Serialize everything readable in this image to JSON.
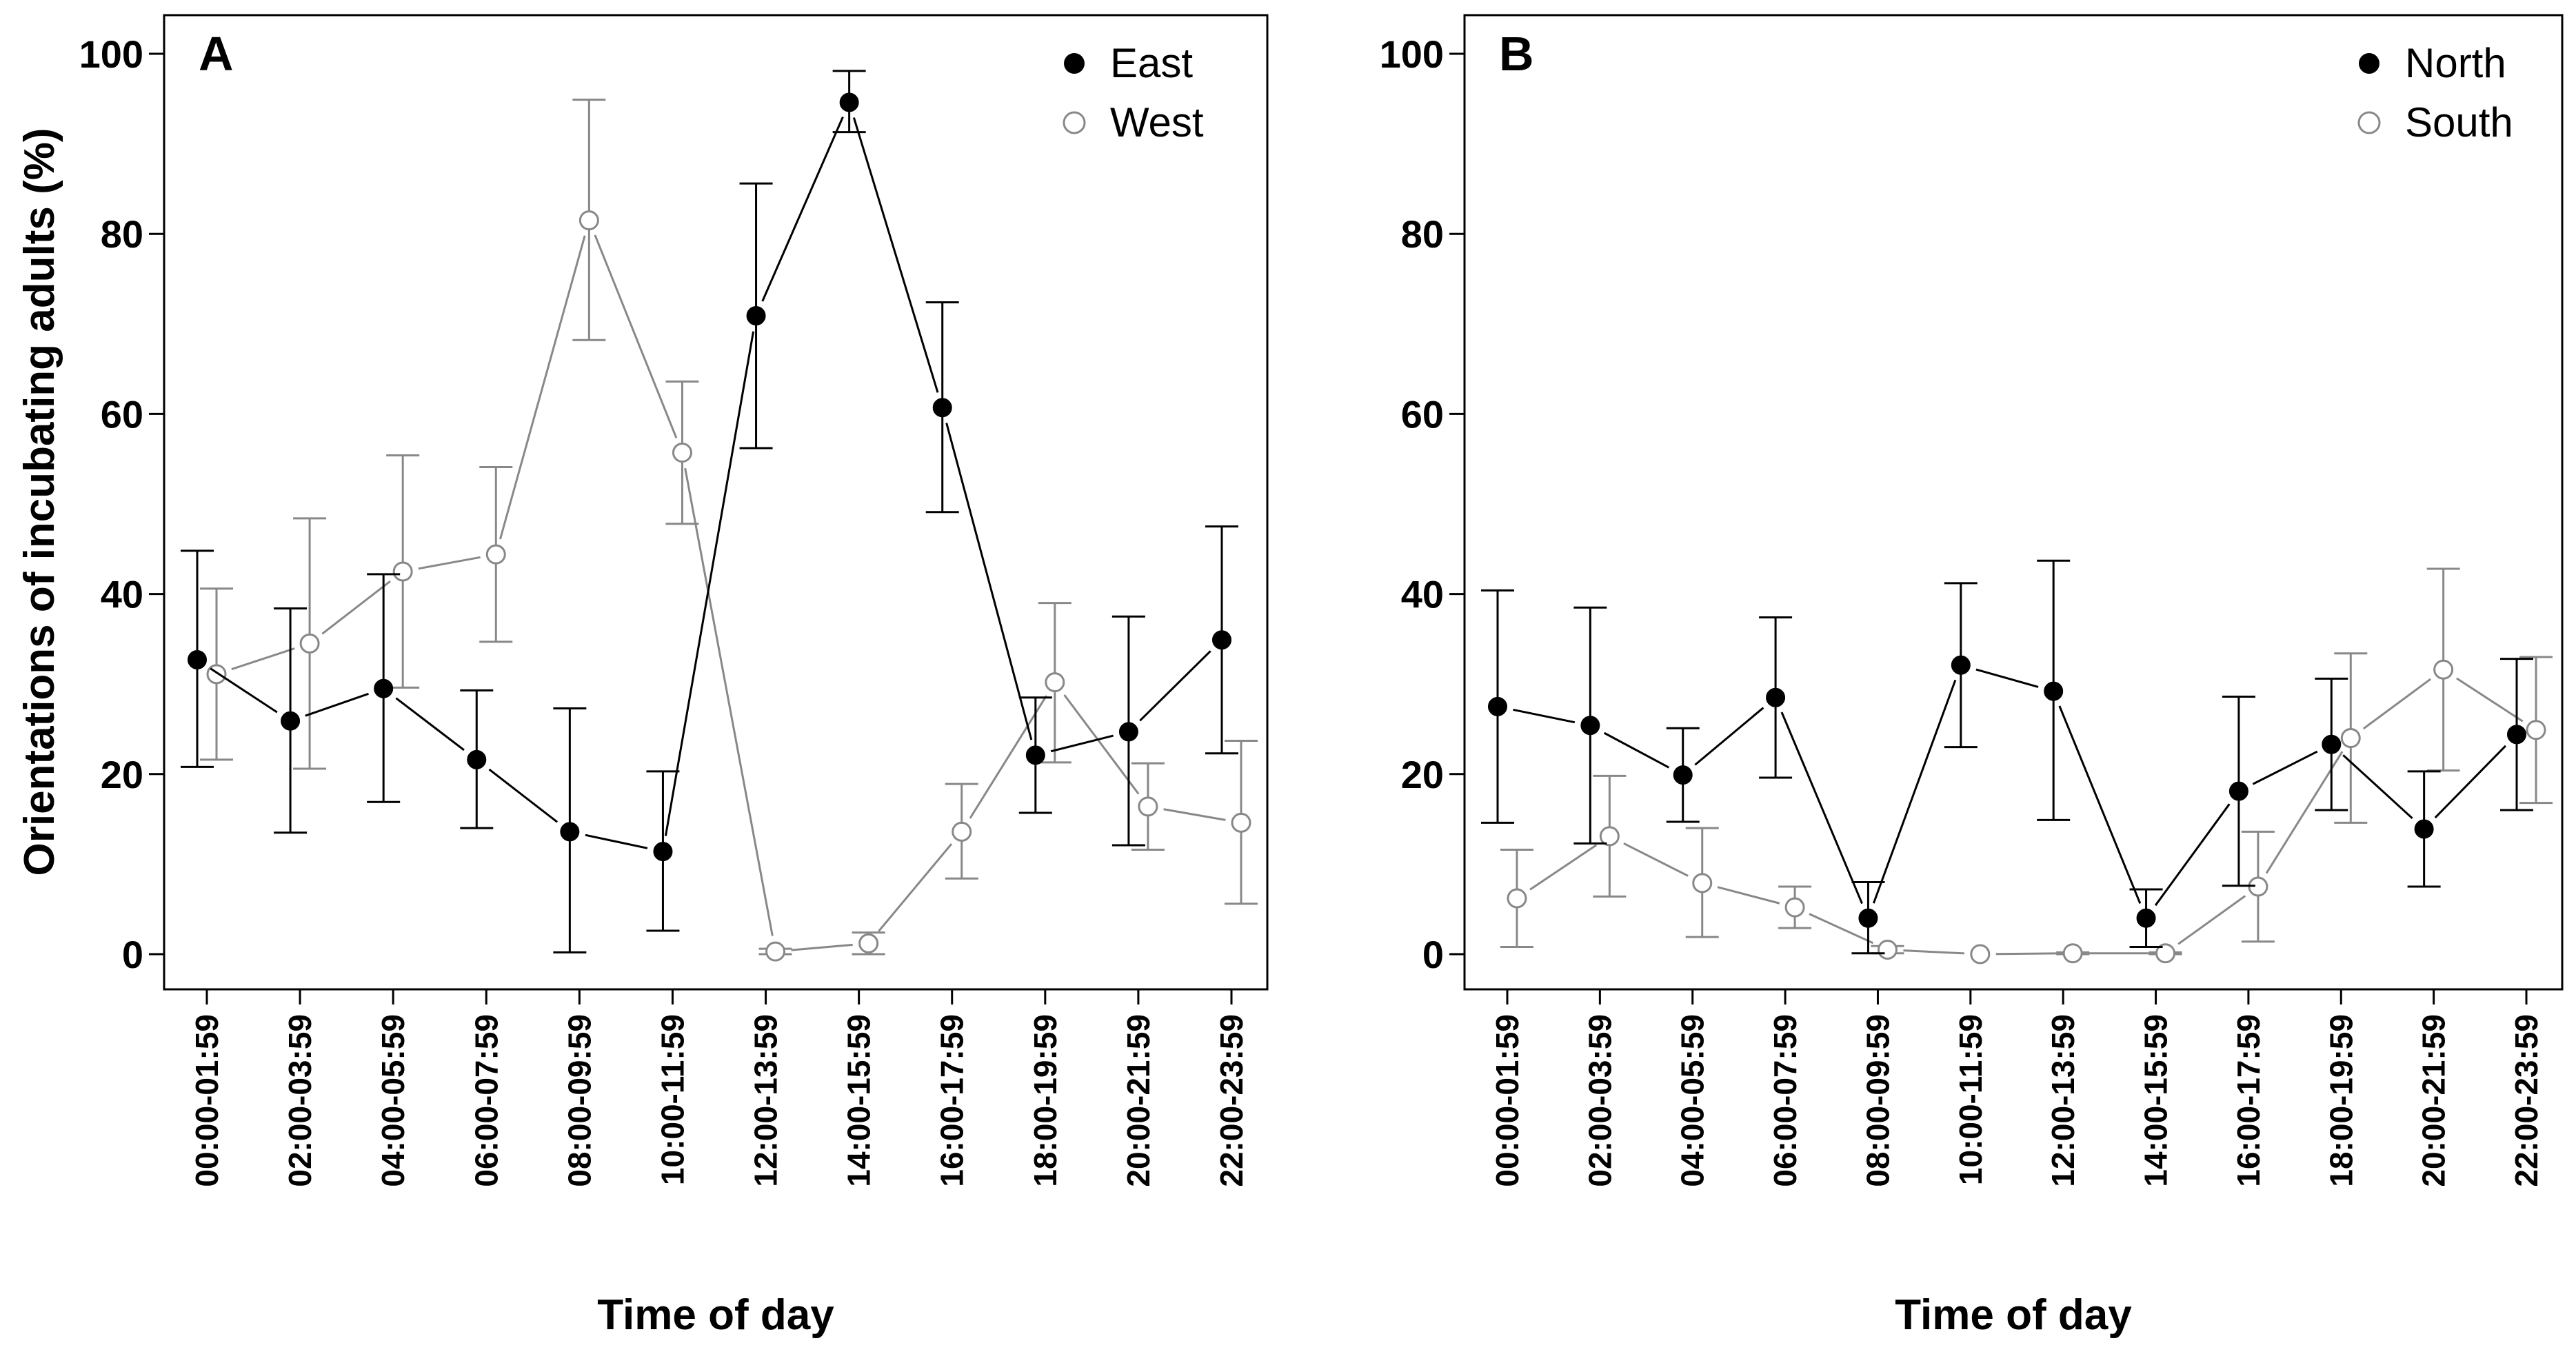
{
  "chart_data": {
    "ylabel": "Orientations of incubating adults (%)",
    "ylim": [
      0,
      100
    ],
    "yticks": [
      0,
      20,
      40,
      60,
      80,
      100
    ],
    "categories": [
      "00:00-01:59",
      "02:00-03:59",
      "04:00-05:59",
      "06:00-07:59",
      "08:00-09:59",
      "10:00-11:59",
      "12:00-13:59",
      "14:00-15:59",
      "16:00-17:59",
      "18:00-19:59",
      "20:00-21:59",
      "22:00-23:59"
    ],
    "panels": [
      {
        "type": "line",
        "label": "A",
        "xlabel": "Time of day",
        "legend_position": "top-right",
        "series": [
          {
            "name": "East",
            "marker": "filled-circle",
            "color": "#000000",
            "values": [
              32.7,
              25.9,
              29.5,
              21.6,
              13.6,
              11.4,
              70.9,
              94.6,
              60.7,
              22.1,
              24.7,
              34.9
            ],
            "lower": [
              20.8,
              13.5,
              16.9,
              14.0,
              0.2,
              2.6,
              56.2,
              91.3,
              49.1,
              15.7,
              12.1,
              22.3
            ],
            "upper": [
              44.8,
              38.4,
              42.2,
              29.3,
              27.3,
              20.3,
              85.6,
              98.1,
              72.4,
              28.5,
              37.5,
              47.5
            ]
          },
          {
            "name": "West",
            "marker": "open-circle",
            "color": "#888888",
            "values": [
              31.1,
              34.5,
              42.5,
              44.4,
              81.5,
              55.7,
              0.3,
              1.2,
              13.6,
              30.2,
              16.4,
              14.6
            ],
            "lower": [
              21.6,
              20.6,
              29.6,
              34.7,
              68.2,
              47.8,
              0.0,
              0.0,
              8.4,
              21.3,
              11.6,
              5.6
            ],
            "upper": [
              40.6,
              48.4,
              55.4,
              54.1,
              94.9,
              63.6,
              0.6,
              2.4,
              18.9,
              39.0,
              21.2,
              23.7
            ]
          }
        ]
      },
      {
        "type": "line",
        "label": "B",
        "xlabel": "Time of day",
        "legend_position": "top-right",
        "series": [
          {
            "name": "North",
            "marker": "filled-circle",
            "color": "#000000",
            "values": [
              27.5,
              25.4,
              19.9,
              28.5,
              4.0,
              32.1,
              29.2,
              4.0,
              18.1,
              23.3,
              13.9,
              24.4
            ],
            "lower": [
              14.6,
              12.3,
              14.7,
              19.6,
              0.1,
              23.0,
              14.9,
              0.8,
              7.6,
              16.0,
              7.5,
              16.0
            ],
            "upper": [
              40.4,
              38.5,
              25.1,
              37.4,
              8.0,
              41.2,
              43.7,
              7.2,
              28.6,
              30.6,
              20.3,
              32.8
            ]
          },
          {
            "name": "South",
            "marker": "open-circle",
            "color": "#888888",
            "values": [
              6.2,
              13.1,
              7.9,
              5.2,
              0.5,
              0.0,
              0.1,
              0.1,
              7.5,
              24.0,
              31.6,
              24.9
            ],
            "lower": [
              0.8,
              6.4,
              1.9,
              2.9,
              0.1,
              0.0,
              0.0,
              0.0,
              1.4,
              14.6,
              20.4,
              16.8
            ],
            "upper": [
              11.6,
              19.8,
              14.0,
              7.5,
              0.9,
              0.0,
              0.2,
              0.2,
              13.6,
              33.4,
              42.8,
              33.0
            ]
          }
        ]
      }
    ]
  }
}
